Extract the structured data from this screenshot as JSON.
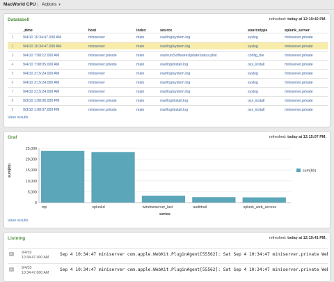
{
  "topbar": {
    "title": "MacWorld CPU",
    "separator": "|",
    "actions_label": "Actions"
  },
  "table_panel": {
    "title": "Datatabell",
    "refreshed_label": "refreshed:",
    "refreshed_time": "today at 12:19:40 PM.",
    "view_results": "View results",
    "columns": [
      "_time",
      "host",
      "index",
      "source",
      "sourcetype",
      "splunk_server"
    ],
    "rows": [
      {
        "i": "1",
        "time": "9/4/10 10:34:47.000 AM",
        "host": "miniserver",
        "index": "main",
        "source": "/var/log/system.log",
        "stype": "syslog",
        "server": "miniserver.private"
      },
      {
        "i": "2",
        "time": "9/4/10 10:34:47.000 AM",
        "host": "miniserver",
        "index": "main",
        "source": "/var/log/system.log",
        "stype": "syslog",
        "server": "miniserver.private"
      },
      {
        "i": "3",
        "time": "9/4/10 7:08:12.000 AM",
        "host": "miniserver.private",
        "index": "main",
        "source": "/var/run/SoftwareUpdateStatus.plist",
        "stype": "config_file",
        "server": "miniserver.private"
      },
      {
        "i": "4",
        "time": "9/4/10 7:08:05.000 AM",
        "host": "miniserver.private",
        "index": "main",
        "source": "/var/log/install.log",
        "stype": "osx_install",
        "server": "miniserver.private"
      },
      {
        "i": "5",
        "time": "9/4/10 3:15:24.000 AM",
        "host": "miniserver",
        "index": "main",
        "source": "/var/log/system.log",
        "stype": "syslog",
        "server": "miniserver.private"
      },
      {
        "i": "6",
        "time": "9/4/10 3:15:24.000 AM",
        "host": "miniserver",
        "index": "main",
        "source": "/var/log/system.log",
        "stype": "syslog",
        "server": "miniserver.private"
      },
      {
        "i": "7",
        "time": "9/4/10 3:15:24.000 AM",
        "host": "miniserver",
        "index": "main",
        "source": "/var/log/system.log",
        "stype": "syslog",
        "server": "miniserver.private"
      },
      {
        "i": "8",
        "time": "9/3/10 1:08:06.000 PM",
        "host": "miniserver.private",
        "index": "main",
        "source": "/var/log/install.log",
        "stype": "osx_install",
        "server": "miniserver.private"
      },
      {
        "i": "9",
        "time": "9/3/10 1:08:07.000 PM",
        "host": "miniserver.private",
        "index": "main",
        "source": "/var/log/install.log",
        "stype": "osx_install",
        "server": "miniserver.private"
      }
    ]
  },
  "chart_panel": {
    "title": "Graf",
    "refreshed_label": "refreshed:",
    "refreshed_time": "today at 12:15:07 PM.",
    "view_results": "View results"
  },
  "chart_data": {
    "type": "bar",
    "categories": [
      "top",
      "splunkd",
      "windowserver_last",
      "audittrail",
      "splunk_web_access"
    ],
    "series": [
      {
        "name": "sum(kb)",
        "values": [
          23800,
          23300,
          3200,
          2500,
          2400
        ]
      }
    ],
    "xlabel": "series",
    "ylabel": "sum(kb)",
    "ylim": [
      0,
      25000
    ],
    "yticks": [
      0,
      5000,
      10000,
      15000,
      20000,
      25000
    ],
    "ytick_labels": [
      "0",
      "5,000",
      "10,000",
      "15,000",
      "20,000",
      "25,000"
    ],
    "legend": "right",
    "bar_color": "#5ba6b8"
  },
  "listing_panel": {
    "title": "Listning",
    "refreshed_label": "refreshed:",
    "refreshed_time": "today at 12:19:41 PM.",
    "rows": [
      {
        "date": "9/4/10",
        "time": "10:34:47.000 AM",
        "text": "Sep  4 10:34:47 miniserver com.apple.WebKit.PluginAgent[55562]: Sat Sep  4 10:34:47 miniserver.private WebKitPlug"
      },
      {
        "date": "9/4/10",
        "time": "10:34:47.000 AM",
        "text": "Sep  4 10:34:47 miniserver com.apple.WebKit.PluginAgent[55562]: Sat Sep  4 10:34:47 miniserver.private WebKitPlug"
      }
    ]
  }
}
